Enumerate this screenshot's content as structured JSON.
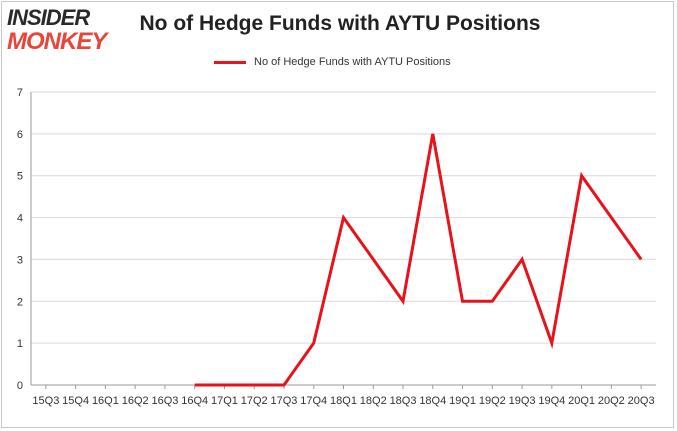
{
  "logo": {
    "line1": "INSIDER",
    "line2": "MONKEY"
  },
  "chart_data": {
    "type": "line",
    "title": "No of Hedge Funds with AYTU Positions",
    "xlabel": "",
    "ylabel": "",
    "ylim": [
      0,
      7
    ],
    "yticks": [
      0,
      1,
      2,
      3,
      4,
      5,
      6,
      7
    ],
    "grid": true,
    "legend": "top-center",
    "categories": [
      "15Q3",
      "15Q4",
      "16Q1",
      "16Q2",
      "16Q3",
      "16Q4",
      "17Q1",
      "17Q2",
      "17Q3",
      "17Q4",
      "18Q1",
      "18Q2",
      "18Q3",
      "18Q4",
      "19Q1",
      "19Q2",
      "19Q3",
      "19Q4",
      "20Q1",
      "20Q2",
      "20Q3"
    ],
    "series": [
      {
        "name": "No of Hedge Funds with AYTU Positions",
        "color": "#e8121a",
        "values": [
          null,
          null,
          null,
          null,
          null,
          0,
          0,
          0,
          0,
          1,
          4,
          3,
          2,
          6,
          2,
          2,
          3,
          1,
          5,
          4,
          3
        ]
      }
    ]
  }
}
